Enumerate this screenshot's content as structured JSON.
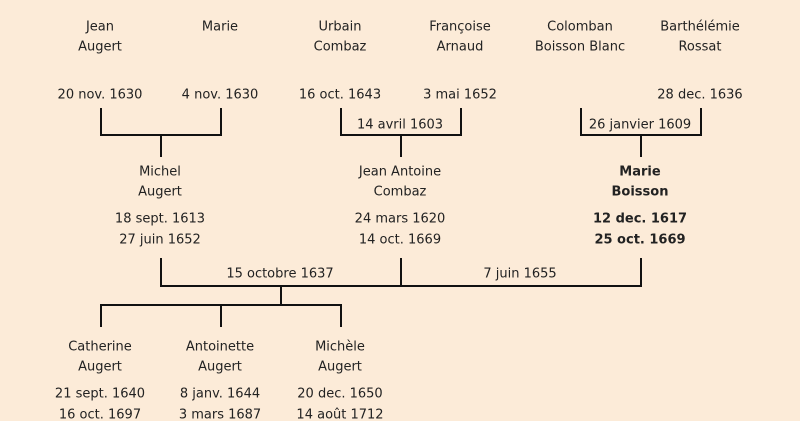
{
  "persons": [
    {
      "lines": [
        "Jean",
        "Augert"
      ],
      "dates": [
        "20 nov. 1630"
      ]
    },
    {
      "lines": [
        "Marie"
      ],
      "dates": [
        "4 nov. 1630"
      ]
    },
    {
      "lines": [
        "Urbain",
        "Combaz"
      ],
      "dates": [
        "16 oct. 1643"
      ]
    },
    {
      "lines": [
        "Françoise",
        "Arnaud"
      ],
      "dates": [
        "3 mai 1652"
      ]
    },
    {
      "lines": [
        "Colomban",
        "Boisson Blanc"
      ],
      "dates": []
    },
    {
      "lines": [
        "Barthélémie",
        "Rossat"
      ],
      "dates": [
        "28 dec. 1636"
      ]
    },
    {
      "lines": [
        "Michel",
        "Augert"
      ],
      "dates": [
        "18 sept. 1613",
        "27 juin 1652"
      ]
    },
    {
      "lines": [
        "Jean Antoine",
        "Combaz"
      ],
      "dates": [
        "24 mars 1620",
        "14 oct. 1669"
      ]
    },
    {
      "lines": [
        "Marie",
        "Boisson"
      ],
      "dates": [
        "12 dec. 1617",
        "25 oct. 1669"
      ]
    },
    {
      "lines": [
        "Catherine",
        "Augert"
      ],
      "dates": [
        "21 sept. 1640",
        "16 oct. 1697"
      ]
    },
    {
      "lines": [
        "Antoinette",
        "Augert"
      ],
      "dates": [
        "8 janv. 1644",
        "3 mars 1687"
      ]
    },
    {
      "lines": [
        "Michèle",
        "Augert"
      ],
      "dates": [
        "20 dec. 1650",
        "14 août 1712"
      ]
    }
  ],
  "marriages": [
    {
      "label": "14 avril 1603"
    },
    {
      "label": "26 janvier 1609"
    },
    {
      "label": "15 octobre 1637"
    },
    {
      "label": "7 juin 1655"
    }
  ]
}
